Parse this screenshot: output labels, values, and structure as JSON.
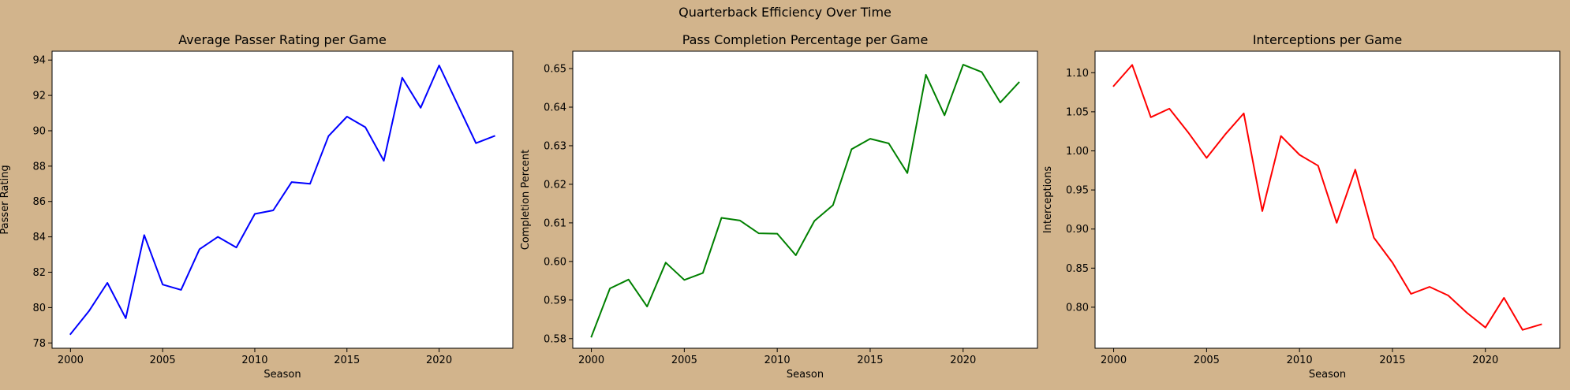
{
  "figure": {
    "suptitle": "Quarterback Efficiency Over Time",
    "background": "#d2b48c"
  },
  "chart_data": [
    {
      "type": "line",
      "title": "Average Passer Rating per Game",
      "xlabel": "Season",
      "ylabel": "Passer Rating",
      "xlim": [
        1999,
        2024
      ],
      "ylim": [
        77.7,
        94.5
      ],
      "xticks": [
        2000,
        2005,
        2010,
        2015,
        2020
      ],
      "yticks": [
        78,
        80,
        82,
        84,
        86,
        88,
        90,
        92,
        94
      ],
      "ytick_labels": [
        "78",
        "80",
        "82",
        "84",
        "86",
        "88",
        "90",
        "92",
        "94"
      ],
      "grid": false,
      "color": "#0000ff",
      "x": [
        2000,
        2001,
        2002,
        2003,
        2004,
        2005,
        2006,
        2007,
        2008,
        2009,
        2010,
        2011,
        2012,
        2013,
        2014,
        2015,
        2016,
        2017,
        2018,
        2019,
        2020,
        2021,
        2022,
        2023
      ],
      "values": [
        78.5,
        79.8,
        81.4,
        79.4,
        84.1,
        81.3,
        81.0,
        83.3,
        84.0,
        83.4,
        85.3,
        85.5,
        87.1,
        87.0,
        89.7,
        90.8,
        90.2,
        88.3,
        93.0,
        91.3,
        93.7,
        91.5,
        89.3,
        89.7
      ]
    },
    {
      "type": "line",
      "title": "Pass Completion Percentage per Game",
      "xlabel": "Season",
      "ylabel": "Completion Percent",
      "xlim": [
        1999,
        2024
      ],
      "ylim": [
        0.5775,
        0.6545
      ],
      "xticks": [
        2000,
        2005,
        2010,
        2015,
        2020
      ],
      "yticks": [
        0.58,
        0.59,
        0.6,
        0.61,
        0.62,
        0.63,
        0.64,
        0.65
      ],
      "ytick_labels": [
        "0.58",
        "0.59",
        "0.60",
        "0.61",
        "0.62",
        "0.63",
        "0.64",
        "0.65"
      ],
      "grid": false,
      "color": "#008000",
      "x": [
        2000,
        2001,
        2002,
        2003,
        2004,
        2005,
        2006,
        2007,
        2008,
        2009,
        2010,
        2011,
        2012,
        2013,
        2014,
        2015,
        2016,
        2017,
        2018,
        2019,
        2020,
        2021,
        2022,
        2023
      ],
      "values": [
        0.5805,
        0.593,
        0.5953,
        0.5883,
        0.5997,
        0.5952,
        0.597,
        0.6113,
        0.6106,
        0.6073,
        0.6072,
        0.6016,
        0.6105,
        0.6146,
        0.6291,
        0.6318,
        0.6306,
        0.6229,
        0.6484,
        0.6379,
        0.651,
        0.6491,
        0.6412,
        0.6464
      ]
    },
    {
      "type": "line",
      "title": "Interceptions per Game",
      "xlabel": "Season",
      "ylabel": "Interceptions",
      "xlim": [
        1999,
        2024
      ],
      "ylim": [
        0.7475,
        1.1275
      ],
      "xticks": [
        2000,
        2005,
        2010,
        2015,
        2020
      ],
      "yticks": [
        0.8,
        0.85,
        0.9,
        0.95,
        1.0,
        1.05,
        1.1
      ],
      "ytick_labels": [
        "0.80",
        "0.85",
        "0.90",
        "0.95",
        "1.00",
        "1.05",
        "1.10"
      ],
      "grid": false,
      "color": "#ff0000",
      "x": [
        2000,
        2001,
        2002,
        2003,
        2004,
        2005,
        2006,
        2007,
        2008,
        2009,
        2010,
        2011,
        2012,
        2013,
        2014,
        2015,
        2016,
        2017,
        2018,
        2019,
        2020,
        2021,
        2022,
        2023
      ],
      "values": [
        1.083,
        1.11,
        1.043,
        1.054,
        1.024,
        0.991,
        1.021,
        1.048,
        0.923,
        1.019,
        0.995,
        0.981,
        0.908,
        0.976,
        0.889,
        0.857,
        0.817,
        0.826,
        0.815,
        0.793,
        0.774,
        0.812,
        0.771,
        0.778
      ]
    }
  ]
}
